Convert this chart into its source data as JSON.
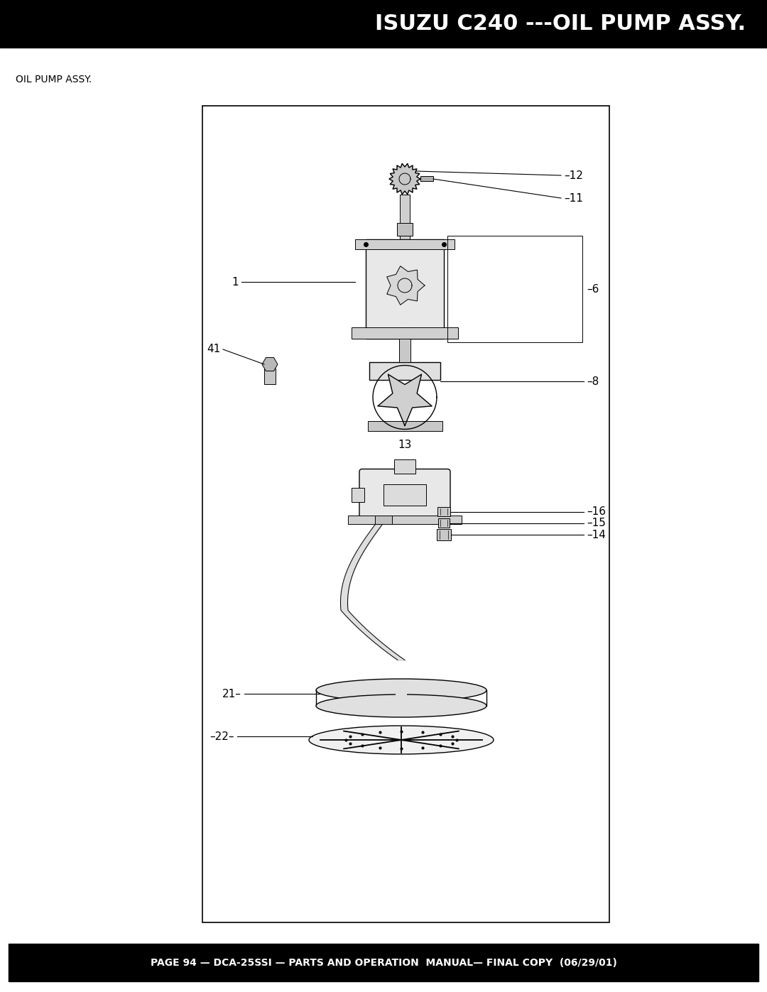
{
  "title": "ISUZU C240 ---OIL PUMP ASSY.",
  "footer": "PAGE 94 — DCA-25SSI — PARTS AND OPERATION  MANUAL— FINAL COPY  (06/29/01)",
  "section_label": "OIL PUMP ASSY.",
  "title_bg": "#000000",
  "title_color": "#ffffff",
  "footer_bg": "#000000",
  "footer_color": "#ffffff",
  "bg_color": "#ffffff",
  "fig_width": 10.8,
  "fig_height": 13.97,
  "title_fontsize": 22,
  "footer_fontsize": 10,
  "section_fontsize": 10,
  "label_fontsize": 11
}
